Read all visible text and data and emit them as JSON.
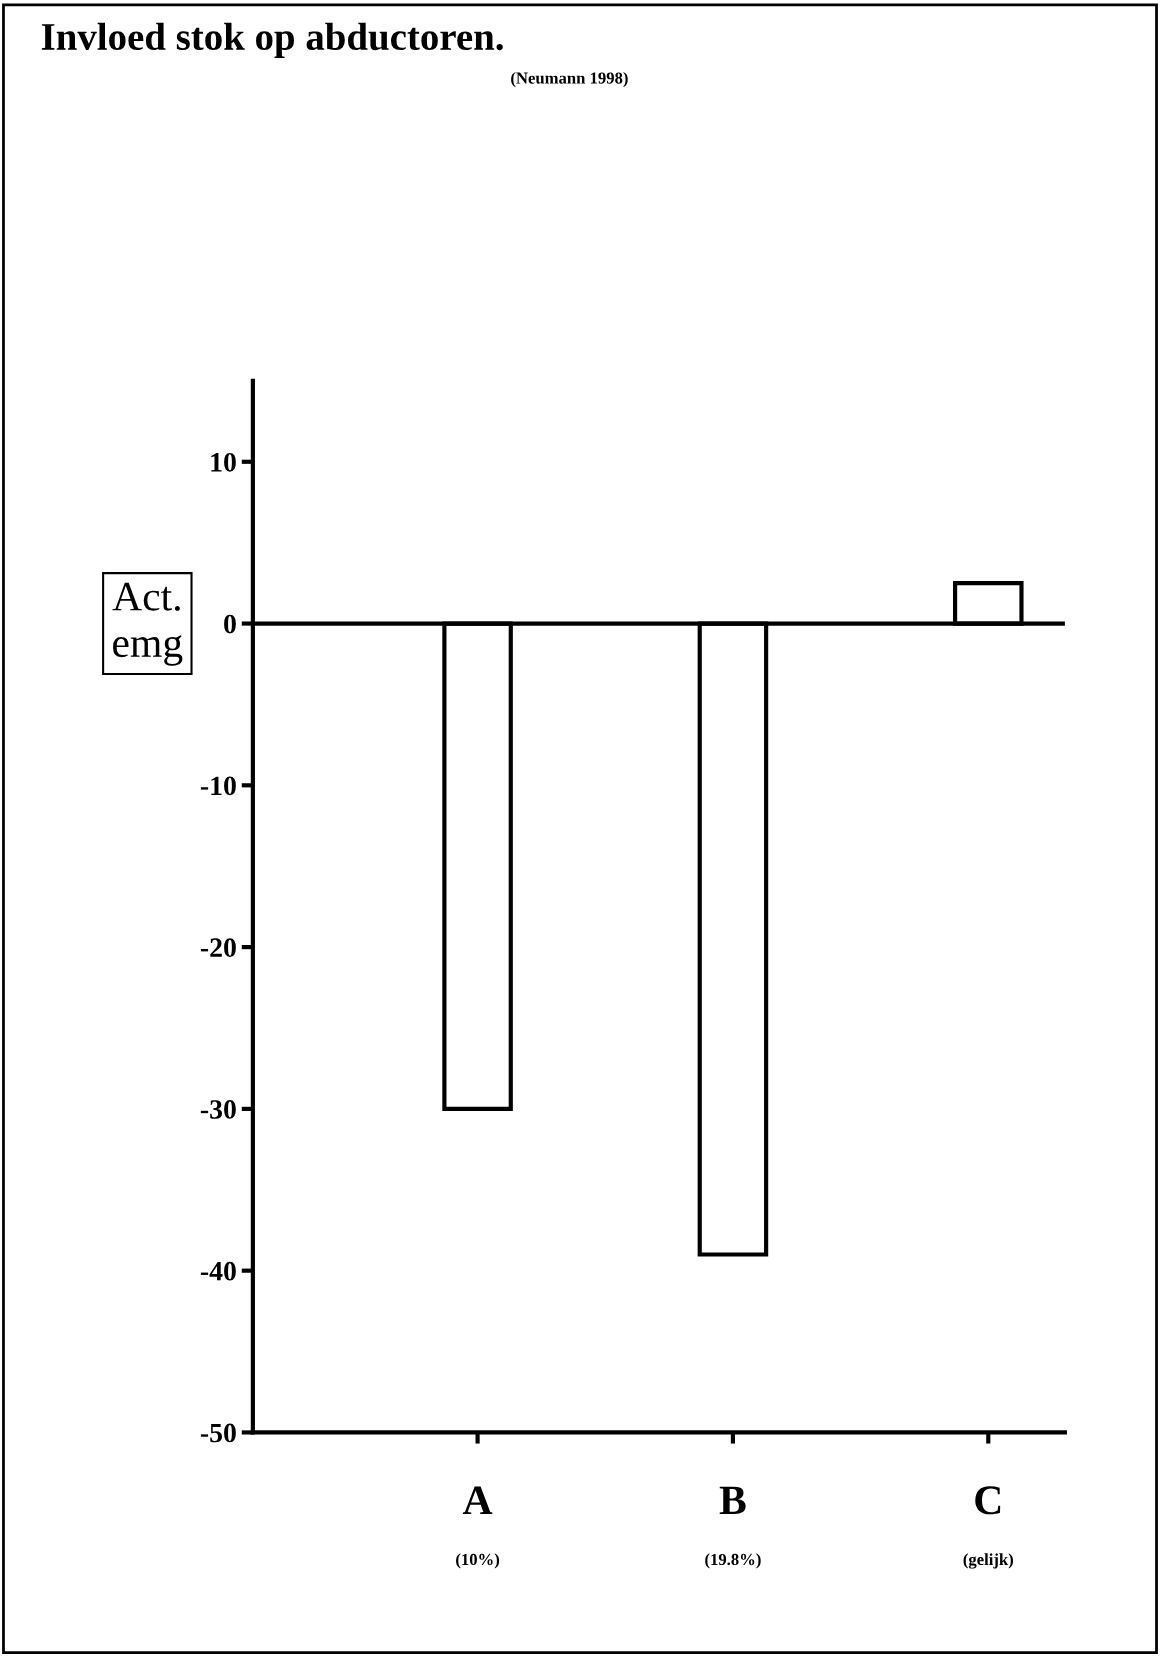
{
  "chart_data": {
    "type": "bar",
    "title": "Invloed stok op abductoren.",
    "ylabel": "Act.\nemg",
    "annotations": [
      "(Neumann 1998)"
    ],
    "categories": [
      "A\n(10%)",
      "B\n(19.8%)",
      "C\n(gelijk)"
    ],
    "values": [
      -30,
      -39,
      2.5
    ],
    "color": "#ffffff",
    "ylim": [
      -50,
      15
    ],
    "yticks": [
      -50,
      -40,
      -30,
      -20,
      -10,
      0,
      10
    ],
    "ref_lines": [
      {
        "axis": "y",
        "value": 0,
        "color": "#000000"
      }
    ],
    "grid": false,
    "legend": false
  }
}
